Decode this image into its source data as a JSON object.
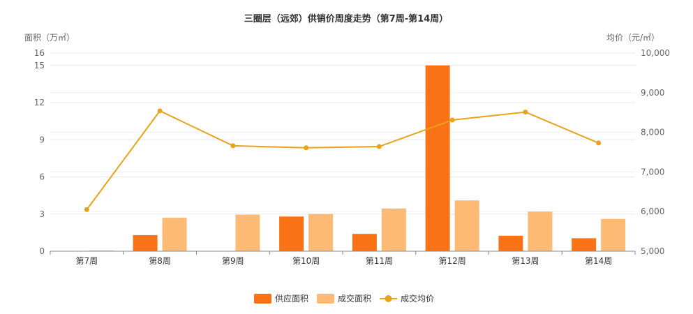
{
  "chart_data": {
    "type": "bar",
    "title": "三圈层（远郊）供销价周度走势（第7周-第14周）",
    "categories": [
      "第7周",
      "第8周",
      "第9周",
      "第10周",
      "第11周",
      "第12周",
      "第13周",
      "第14周"
    ],
    "y_left": {
      "label": "面积（万㎡）",
      "ylim": [
        0,
        16
      ],
      "ticks": [
        "0",
        "3",
        "6",
        "9",
        "12",
        "15",
        "16"
      ],
      "tick_values": [
        0,
        3,
        6,
        9,
        12,
        15,
        16
      ]
    },
    "y_right": {
      "label": "均价（元/㎡）",
      "ylim": [
        5000,
        10000
      ],
      "ticks": [
        "5,000",
        "6,000",
        "7,000",
        "8,000",
        "9,000",
        "10,000"
      ],
      "tick_values": [
        5000,
        6000,
        7000,
        8000,
        9000,
        10000
      ]
    },
    "series": [
      {
        "name": "供应面积",
        "type": "bar",
        "axis": "left",
        "color": "#F97316",
        "values": [
          0,
          1.3,
          0,
          2.8,
          1.4,
          15.0,
          1.25,
          1.05
        ]
      },
      {
        "name": "成交面积",
        "type": "bar",
        "axis": "left",
        "color": "#FDBA74",
        "values": [
          0.05,
          2.7,
          2.95,
          3.0,
          3.45,
          4.1,
          3.2,
          2.6
        ]
      },
      {
        "name": "成交均价",
        "type": "line",
        "axis": "right",
        "color": "#E9A21A",
        "values": [
          6050,
          8540,
          7660,
          7610,
          7640,
          8310,
          8510,
          7730
        ]
      }
    ],
    "grid": true,
    "legend_position": "bottom-center"
  }
}
